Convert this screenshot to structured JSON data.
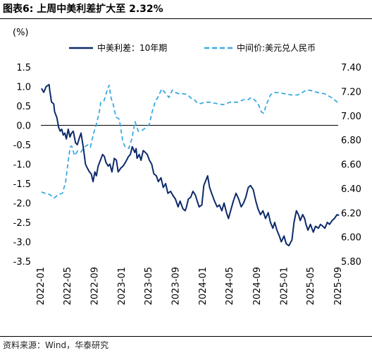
{
  "figure": {
    "title": "图表6:  上周中美利差扩大至 2.32%",
    "source": "资料来源：Wind，华泰研究"
  },
  "chart_data": {
    "type": "line",
    "ylabel_left": "(%)",
    "ylim_left": [
      -3.5,
      1.5
    ],
    "yticks_left": [
      "1.5",
      "1.0",
      "0.5",
      "0.0",
      "-0.5",
      "-1.0",
      "-1.5",
      "-2.0",
      "-2.5",
      "-3.0",
      "-3.5"
    ],
    "ylim_right": [
      5.8,
      7.4
    ],
    "yticks_right": [
      "7.40",
      "7.20",
      "7.00",
      "6.80",
      "6.60",
      "6.40",
      "6.20",
      "6.00",
      "5.80"
    ],
    "xlim": [
      "2022-01",
      "2025-09"
    ],
    "xticks": [
      "2022-01",
      "2022-05",
      "2022-09",
      "2023-01",
      "2023-05",
      "2023-09",
      "2024-01",
      "2024-05",
      "2024-09",
      "2025-01",
      "2025-05",
      "2025-09"
    ],
    "legend_position": "top",
    "grid": false,
    "series": [
      {
        "name": "中美利差：10年期",
        "axis": "left",
        "style": "solid",
        "color": "#0d2a6b",
        "x": [
          "2022-01-04",
          "2022-01-14",
          "2022-01-25",
          "2022-02-07",
          "2022-02-10",
          "2022-02-18",
          "2022-02-28",
          "2022-03-04",
          "2022-03-14",
          "2022-03-22",
          "2022-03-29",
          "2022-04-05",
          "2022-04-12",
          "2022-04-19",
          "2022-04-26",
          "2022-05-04",
          "2022-05-12",
          "2022-05-19",
          "2022-05-27",
          "2022-06-06",
          "2022-06-14",
          "2022-06-22",
          "2022-07-01",
          "2022-07-12",
          "2022-07-21",
          "2022-07-29",
          "2022-08-08",
          "2022-08-16",
          "2022-08-24",
          "2022-09-01",
          "2022-09-08",
          "2022-09-16",
          "2022-09-26",
          "2022-10-06",
          "2022-10-14",
          "2022-10-21",
          "2022-10-31",
          "2022-11-08",
          "2022-11-17",
          "2022-11-28",
          "2022-12-07",
          "2022-12-15",
          "2022-12-27",
          "2023-01-06",
          "2023-01-17",
          "2023-01-31",
          "2023-02-08",
          "2023-02-17",
          "2023-02-28",
          "2023-03-06",
          "2023-03-10",
          "2023-03-20",
          "2023-03-28",
          "2023-04-07",
          "2023-04-17",
          "2023-04-25",
          "2023-05-05",
          "2023-05-15",
          "2023-05-25",
          "2023-06-05",
          "2023-06-14",
          "2023-06-26",
          "2023-07-06",
          "2023-07-17",
          "2023-07-27",
          "2023-08-08",
          "2023-08-18",
          "2023-08-30",
          "2023-09-11",
          "2023-09-20",
          "2023-10-03",
          "2023-10-13",
          "2023-10-19",
          "2023-10-27",
          "2023-11-07",
          "2023-11-17",
          "2023-11-28",
          "2023-12-06",
          "2023-12-15",
          "2023-12-27",
          "2024-01-05",
          "2024-01-12",
          "2024-01-22",
          "2024-01-31",
          "2024-02-09",
          "2024-02-22",
          "2024-03-05",
          "2024-03-15",
          "2024-03-26",
          "2024-04-05",
          "2024-04-16",
          "2024-04-25",
          "2024-05-07",
          "2024-05-17",
          "2024-05-29",
          "2024-06-10",
          "2024-06-21",
          "2024-07-02",
          "2024-07-12",
          "2024-07-23",
          "2024-08-02",
          "2024-08-14",
          "2024-08-26",
          "2024-09-05",
          "2024-09-16",
          "2024-09-27",
          "2024-10-09",
          "2024-10-21",
          "2024-10-31",
          "2024-11-11",
          "2024-11-19",
          "2024-11-29",
          "2024-12-10",
          "2024-12-19",
          "2024-12-31",
          "2025-01-10",
          "2025-01-22",
          "2025-02-05",
          "2025-02-14",
          "2025-02-25",
          "2025-03-06",
          "2025-03-14",
          "2025-03-25",
          "2025-04-03",
          "2025-04-09",
          "2025-04-18",
          "2025-04-29",
          "2025-05-12",
          "2025-05-22",
          "2025-06-04",
          "2025-06-13",
          "2025-06-24",
          "2025-07-03",
          "2025-07-14",
          "2025-07-24",
          "2025-08-05",
          "2025-08-15",
          "2025-08-27",
          "2025-09-05"
        ],
        "values": [
          0.95,
          0.85,
          1.0,
          1.05,
          0.9,
          0.6,
          0.55,
          0.35,
          0.2,
          -0.05,
          -0.15,
          -0.1,
          -0.25,
          -0.2,
          -0.35,
          -0.1,
          -0.3,
          -0.2,
          -0.15,
          -0.45,
          -0.5,
          -0.35,
          -0.2,
          -0.6,
          -1.0,
          -1.1,
          -1.2,
          -1.25,
          -1.45,
          -1.2,
          -1.3,
          -1.05,
          -0.9,
          -0.75,
          -0.8,
          -0.95,
          -1.05,
          -1.0,
          -1.2,
          -0.85,
          -0.9,
          -1.2,
          -1.1,
          -1.05,
          -0.95,
          -0.8,
          -0.75,
          -0.55,
          -0.7,
          -0.6,
          -0.85,
          -0.75,
          -0.9,
          -0.65,
          -0.7,
          -0.75,
          -0.9,
          -1.0,
          -1.25,
          -1.3,
          -1.45,
          -1.35,
          -1.6,
          -1.5,
          -1.75,
          -1.7,
          -1.8,
          -1.9,
          -2.1,
          -1.95,
          -2.15,
          -2.2,
          -2.1,
          -1.9,
          -1.85,
          -1.7,
          -1.8,
          -1.95,
          -2.1,
          -2.05,
          -1.55,
          -1.45,
          -1.3,
          -1.6,
          -1.75,
          -1.95,
          -2.1,
          -2.05,
          -2.2,
          -2.0,
          -2.25,
          -2.4,
          -2.15,
          -1.95,
          -1.75,
          -1.9,
          -2.1,
          -2.0,
          -1.85,
          -1.6,
          -1.55,
          -1.65,
          -1.95,
          -2.15,
          -2.3,
          -2.2,
          -2.4,
          -2.25,
          -2.5,
          -2.65,
          -2.5,
          -2.7,
          -2.85,
          -3.0,
          -2.85,
          -3.05,
          -3.1,
          -2.95,
          -2.5,
          -2.2,
          -2.3,
          -2.45,
          -2.3,
          -2.4,
          -2.55,
          -2.7,
          -2.55,
          -2.75,
          -2.6,
          -2.65,
          -2.55,
          -2.6,
          -2.65,
          -2.5,
          -2.55,
          -2.45,
          -2.4,
          -2.3,
          -2.32
        ]
      },
      {
        "name": "中间价:美元兑人民币",
        "axis": "right",
        "style": "dashed",
        "color": "#3aaae0",
        "x": [
          "2022-01-04",
          "2022-01-20",
          "2022-02-10",
          "2022-03-01",
          "2022-03-21",
          "2022-04-08",
          "2022-04-22",
          "2022-05-06",
          "2022-05-13",
          "2022-05-20",
          "2022-06-02",
          "2022-06-16",
          "2022-07-01",
          "2022-07-15",
          "2022-08-01",
          "2022-08-12",
          "2022-08-26",
          "2022-09-08",
          "2022-09-20",
          "2022-09-28",
          "2022-10-12",
          "2022-10-25",
          "2022-11-04",
          "2022-11-14",
          "2022-11-22",
          "2022-12-05",
          "2022-12-20",
          "2023-01-06",
          "2023-01-16",
          "2023-02-01",
          "2023-02-15",
          "2023-03-01",
          "2023-03-16",
          "2023-04-03",
          "2023-04-18",
          "2023-05-05",
          "2023-05-17",
          "2023-06-01",
          "2023-06-15",
          "2023-06-29",
          "2023-07-14",
          "2023-08-01",
          "2023-08-16",
          "2023-09-01",
          "2023-09-15",
          "2023-10-09",
          "2023-10-25",
          "2023-11-10",
          "2023-11-24",
          "2023-12-08",
          "2023-12-22",
          "2024-01-10",
          "2024-02-01",
          "2024-03-01",
          "2024-04-01",
          "2024-05-02",
          "2024-06-03",
          "2024-07-01",
          "2024-07-22",
          "2024-08-06",
          "2024-08-20",
          "2024-09-05",
          "2024-09-20",
          "2024-09-30",
          "2024-10-15",
          "2024-10-31",
          "2024-11-15",
          "2024-12-02",
          "2025-01-02",
          "2025-02-03",
          "2025-03-03",
          "2025-04-01",
          "2025-04-10",
          "2025-04-25",
          "2025-05-15",
          "2025-06-03",
          "2025-07-01",
          "2025-08-01",
          "2025-09-05"
        ],
        "values": [
          6.37,
          6.36,
          6.35,
          6.32,
          6.35,
          6.36,
          6.45,
          6.65,
          6.74,
          6.75,
          6.67,
          6.71,
          6.7,
          6.74,
          6.76,
          6.74,
          6.85,
          6.93,
          7.02,
          7.11,
          7.12,
          7.2,
          7.25,
          7.14,
          7.1,
          6.99,
          6.97,
          6.78,
          6.74,
          6.73,
          6.81,
          6.95,
          6.87,
          6.88,
          6.9,
          6.93,
          7.03,
          7.12,
          7.16,
          7.22,
          7.19,
          7.15,
          7.21,
          7.19,
          7.18,
          7.18,
          7.17,
          7.14,
          7.13,
          7.1,
          7.1,
          7.11,
          7.11,
          7.1,
          7.09,
          7.11,
          7.11,
          7.13,
          7.13,
          7.15,
          7.13,
          7.1,
          7.03,
          7.02,
          7.1,
          7.17,
          7.19,
          7.19,
          7.18,
          7.17,
          7.17,
          7.2,
          7.21,
          7.21,
          7.2,
          7.19,
          7.18,
          7.15,
          7.1
        ]
      }
    ]
  }
}
